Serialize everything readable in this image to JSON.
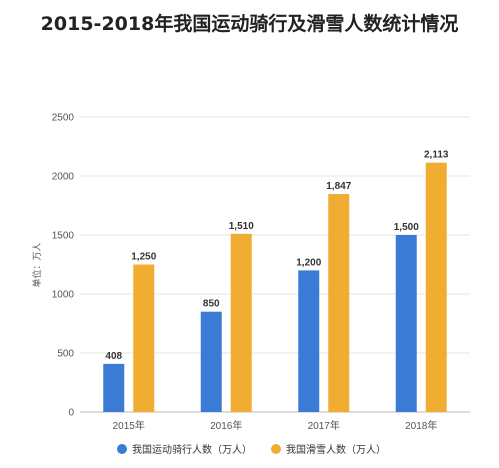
{
  "chart_data": {
    "type": "bar",
    "title": "2015-2018年我国运动骑行及滑雪人数统计情况",
    "ylabel": "单位：万人",
    "categories": [
      "2015年",
      "2016年",
      "2017年",
      "2018年"
    ],
    "series": [
      {
        "name": "我国运动骑行人数（万人）",
        "color": "#3a7bd5",
        "values": [
          408,
          850,
          1200,
          1500
        ],
        "labels": [
          "408",
          "850",
          "1,200",
          "1,500"
        ]
      },
      {
        "name": "我国滑雪人数（万人）",
        "color": "#f0ad32",
        "values": [
          1250,
          1510,
          1847,
          2113
        ],
        "labels": [
          "1,250",
          "1,510",
          "1,847",
          "2,113"
        ]
      }
    ],
    "ylim": [
      0,
      2500
    ],
    "yticks": [
      0,
      500,
      1000,
      1500,
      2000,
      2500
    ],
    "grid": true,
    "legend": "bottom-center"
  }
}
